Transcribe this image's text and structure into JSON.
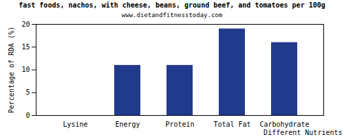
{
  "chart_data": {
    "type": "bar",
    "title": "fast foods, nachos, with cheese, beans, ground beef, and tomatoes per 100g",
    "subtitle": "www.dietandfitnesstoday.com",
    "x_label": "Different Nutrients",
    "y_label": "Percentage of RDA (%)",
    "categories": [
      "Lysine",
      "Energy",
      "Protein",
      "Total Fat",
      "Carbohydrate"
    ],
    "values": [
      0,
      11,
      11,
      19,
      16
    ],
    "color": "#223a8c",
    "ylim": [
      0,
      20
    ],
    "yticks": [
      0,
      5,
      10,
      15,
      20
    ],
    "grid": false
  }
}
